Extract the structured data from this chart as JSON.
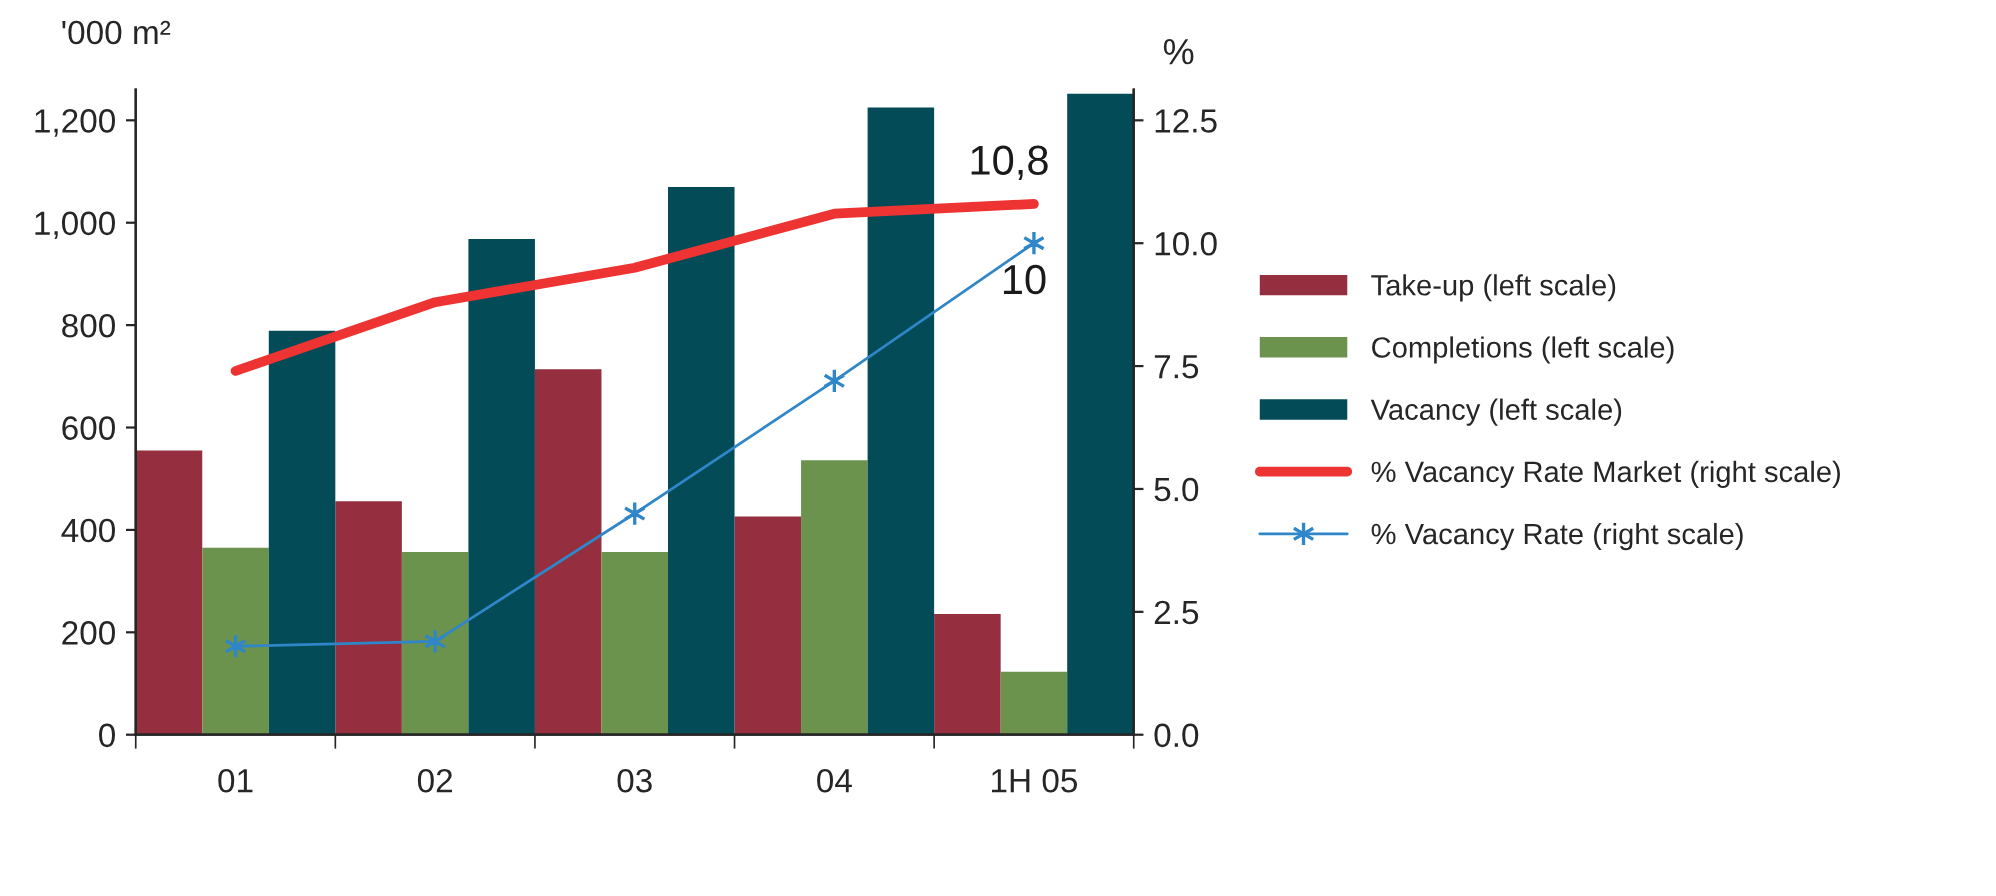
{
  "chart_data": {
    "type": "bar",
    "ylabel": "'000 m²",
    "y2label": "%",
    "categories": [
      "01",
      "02",
      "03",
      "04",
      "1H 05"
    ],
    "series": [
      {
        "name": "Take-up (left scale)",
        "color": "#952e3e",
        "values": [
          555,
          456,
          714,
          426,
          236
        ]
      },
      {
        "name": "Completions (left scale)",
        "color": "#6c934d",
        "values": [
          365,
          357,
          357,
          536,
          123
        ]
      },
      {
        "name": "Vacancy (left scale)",
        "color": "#024b57",
        "values": [
          789,
          968,
          1070,
          1225,
          1252
        ]
      },
      {
        "name": "% Vacancy Rate Market (right scale)",
        "type": "line",
        "axis": "y2",
        "color": "#ee3333",
        "marker": "none",
        "values": [
          7.4,
          8.8,
          9.5,
          10.6,
          10.8
        ]
      },
      {
        "name": "% Vacancy Rate (right scale)",
        "type": "line",
        "axis": "y2",
        "color": "#2f86c8",
        "marker": "cross",
        "values": [
          1.8,
          1.9,
          4.5,
          7.2,
          10.0
        ]
      }
    ],
    "ylim": [
      0,
      1260
    ],
    "yticks": [
      0,
      200,
      400,
      600,
      800,
      {
        "value": 1000,
        "label": "1,000"
      },
      {
        "value": 1200,
        "label": "1,200"
      }
    ],
    "y2lim": [
      0,
      13.125
    ],
    "y2ticks": [
      {
        "value": 0,
        "label": "0.0"
      },
      2.5,
      {
        "value": 5,
        "label": "5.0"
      },
      7.5,
      {
        "value": 10,
        "label": "10.0"
      },
      12.5
    ],
    "annotations": [
      "10,8",
      "10"
    ],
    "legend": "right",
    "grid": false
  }
}
